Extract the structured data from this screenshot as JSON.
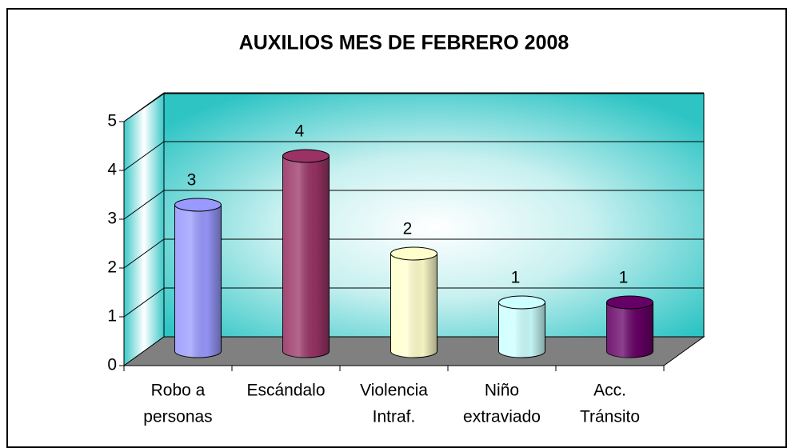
{
  "chart_data": {
    "type": "bar3d",
    "title": "AUXILIOS MES DE FEBRERO 2008",
    "categories": [
      [
        "Robo a",
        "personas"
      ],
      [
        "Escándalo"
      ],
      [
        "Violencia",
        "Intraf."
      ],
      [
        "Niño",
        "extraviado"
      ],
      [
        "Acc.",
        "Tránsito"
      ]
    ],
    "values": [
      3,
      4,
      2,
      1,
      1
    ],
    "colors": [
      "#9999ff",
      "#993366",
      "#ffffcc",
      "#ccffff",
      "#660066"
    ],
    "ylim": [
      0,
      5
    ],
    "yticks": [
      0,
      1,
      2,
      3,
      4,
      5
    ],
    "grid": true
  }
}
